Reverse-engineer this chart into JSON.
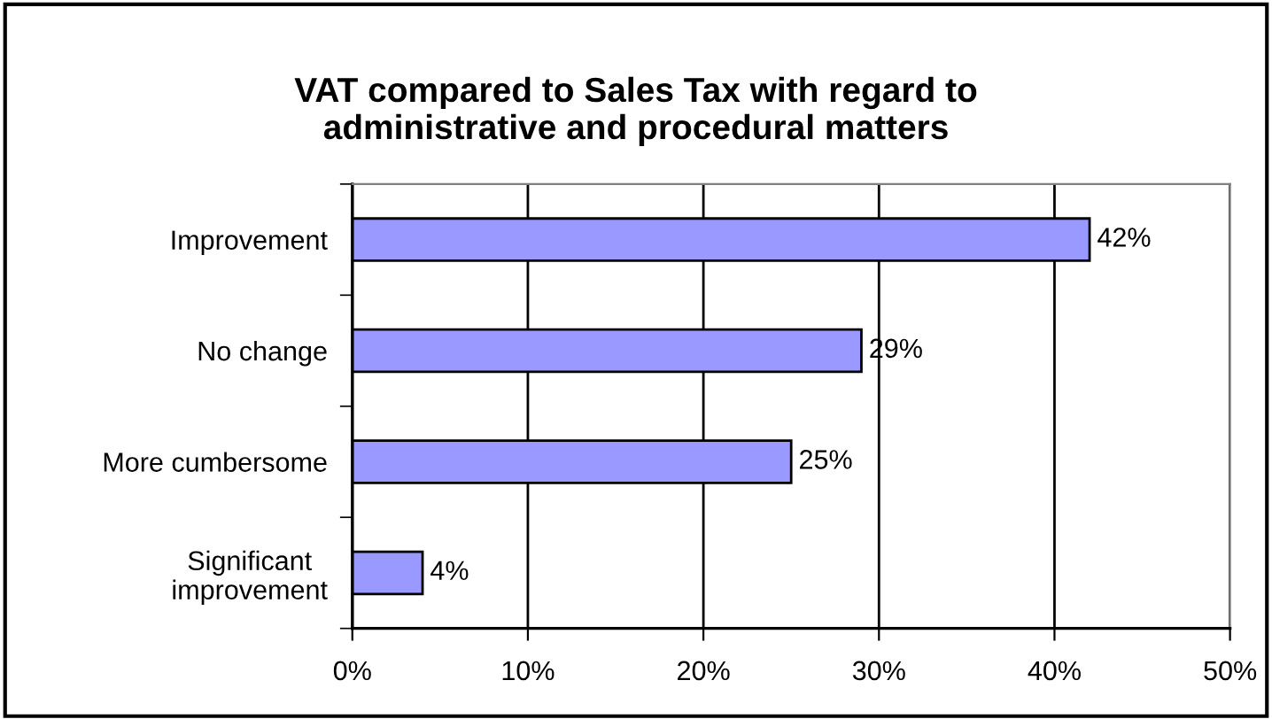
{
  "chart_data": {
    "type": "bar",
    "orientation": "horizontal",
    "title": "VAT compared to Sales Tax with regard to\nadministrative and procedural matters",
    "categories": [
      "Improvement",
      "No change",
      "More cumbersome",
      "Significant\nimprovement"
    ],
    "values": [
      42,
      29,
      25,
      4
    ],
    "value_labels": [
      "42%",
      "29%",
      "25%",
      "4%"
    ],
    "color": "#9999ff",
    "xlim": [
      0,
      50
    ],
    "xticks": [
      {
        "value": 0,
        "label": "0%"
      },
      {
        "value": 10,
        "label": "10%"
      },
      {
        "value": 20,
        "label": "20%"
      },
      {
        "value": 30,
        "label": "30%"
      },
      {
        "value": 40,
        "label": "40%"
      },
      {
        "value": 50,
        "label": "50%"
      }
    ],
    "grid": "x",
    "legend": false
  }
}
